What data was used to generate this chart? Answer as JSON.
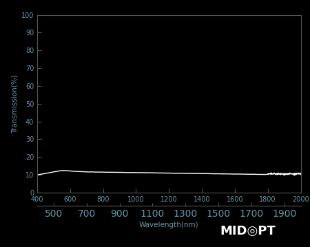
{
  "background_color": "#000000",
  "plot_bg_color": "#000000",
  "line_color": "#ffffff",
  "tick_label_color": "#6699aa",
  "axis_label_color": "#6699aa",
  "xlabel": "Wavelength(nm)",
  "ylabel": "Transmission(%)",
  "xlim": [
    400,
    2000
  ],
  "ylim": [
    0,
    100
  ],
  "yticks": [
    0,
    10,
    20,
    30,
    40,
    50,
    60,
    70,
    80,
    90,
    100
  ],
  "xticks_major": [
    400,
    600,
    800,
    1000,
    1200,
    1400,
    1600,
    1800,
    2000
  ],
  "xticks_minor": [
    500,
    700,
    900,
    1100,
    1300,
    1500,
    1700,
    1900
  ],
  "line_width": 1.0,
  "watermark_color": "#ffffff",
  "watermark_fontsize": 13,
  "spine_color": "#555555",
  "tick_color": "#555555"
}
